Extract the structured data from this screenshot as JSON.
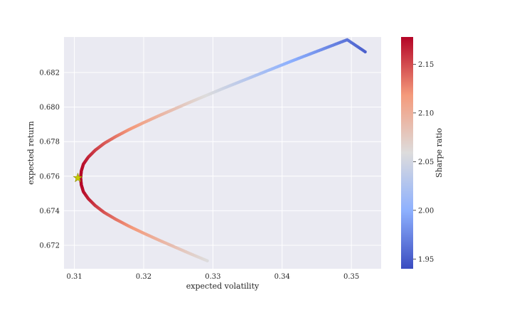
{
  "chart_data": {
    "type": "scatter",
    "title": "",
    "xlabel": "expected volatility",
    "ylabel": "expected return",
    "xlim": [
      0.3085,
      0.3543
    ],
    "ylim": [
      0.67064,
      0.68406
    ],
    "xticks": [
      0.31,
      0.32,
      0.33,
      0.34,
      0.35
    ],
    "xtick_labels": [
      "0.31",
      "0.32",
      "0.33",
      "0.34",
      "0.35"
    ],
    "yticks": [
      0.672,
      0.674,
      0.676,
      0.678,
      0.68,
      0.682
    ],
    "ytick_labels": [
      "0.672",
      "0.674",
      "0.676",
      "0.678",
      "0.680",
      "0.682"
    ],
    "grid": true,
    "colorbar": {
      "label": "Sharpe ratio",
      "range": [
        1.94,
        2.178
      ],
      "ticks": [
        1.95,
        2.0,
        2.05,
        2.1,
        2.15
      ],
      "tick_labels": [
        "1.95",
        "2.00",
        "2.05",
        "2.10",
        "2.15"
      ],
      "colormap": "coolwarm"
    },
    "series": [
      {
        "marker": "circle",
        "points": [
          {
            "x": 0.3292,
            "y": 0.6711,
            "c": 2.058
          },
          {
            "x": 0.3268,
            "y": 0.6715,
            "c": 2.071
          },
          {
            "x": 0.3245,
            "y": 0.6719,
            "c": 2.083
          },
          {
            "x": 0.3222,
            "y": 0.6723,
            "c": 2.096
          },
          {
            "x": 0.32,
            "y": 0.6727,
            "c": 2.108
          },
          {
            "x": 0.3179,
            "y": 0.6731,
            "c": 2.121
          },
          {
            "x": 0.316,
            "y": 0.6735,
            "c": 2.133
          },
          {
            "x": 0.3143,
            "y": 0.6739,
            "c": 2.145
          },
          {
            "x": 0.313,
            "y": 0.6743,
            "c": 2.156
          },
          {
            "x": 0.312,
            "y": 0.6747,
            "c": 2.166
          },
          {
            "x": 0.3113,
            "y": 0.6751,
            "c": 2.173
          },
          {
            "x": 0.311,
            "y": 0.6755,
            "c": 2.176
          },
          {
            "x": 0.3109,
            "y": 0.6759,
            "c": 2.177
          },
          {
            "x": 0.311,
            "y": 0.6763,
            "c": 2.176
          },
          {
            "x": 0.3113,
            "y": 0.6767,
            "c": 2.173
          },
          {
            "x": 0.312,
            "y": 0.6771,
            "c": 2.166
          },
          {
            "x": 0.313,
            "y": 0.6775,
            "c": 2.156
          },
          {
            "x": 0.3143,
            "y": 0.6779,
            "c": 2.145
          },
          {
            "x": 0.316,
            "y": 0.6783,
            "c": 2.133
          },
          {
            "x": 0.3179,
            "y": 0.6787,
            "c": 2.121
          },
          {
            "x": 0.32,
            "y": 0.6791,
            "c": 2.108
          },
          {
            "x": 0.3222,
            "y": 0.6795,
            "c": 2.096
          },
          {
            "x": 0.3245,
            "y": 0.6799,
            "c": 2.083
          },
          {
            "x": 0.3268,
            "y": 0.6803,
            "c": 2.071
          },
          {
            "x": 0.3292,
            "y": 0.6807,
            "c": 2.058
          },
          {
            "x": 0.3316,
            "y": 0.6811,
            "c": 2.046
          },
          {
            "x": 0.3341,
            "y": 0.6815,
            "c": 2.034
          },
          {
            "x": 0.3366,
            "y": 0.6819,
            "c": 2.022
          },
          {
            "x": 0.3391,
            "y": 0.6823,
            "c": 2.01
          },
          {
            "x": 0.3416,
            "y": 0.6827,
            "c": 1.998
          },
          {
            "x": 0.3442,
            "y": 0.6831,
            "c": 1.987
          },
          {
            "x": 0.3468,
            "y": 0.6835,
            "c": 1.975
          },
          {
            "x": 0.3494,
            "y": 0.6839,
            "c": 1.964
          },
          {
            "x": 0.352,
            "y": 0.6832,
            "c": 1.952
          }
        ]
      }
    ],
    "highlight": {
      "marker": "star",
      "color": "#c8c800",
      "x": 0.3105,
      "y": 0.6759
    }
  }
}
